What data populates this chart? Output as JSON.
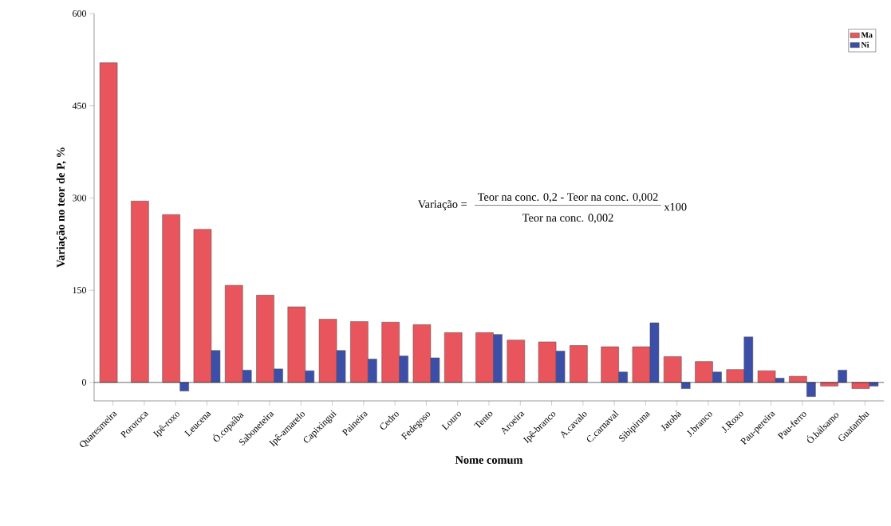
{
  "chart_data": {
    "type": "bar",
    "xlabel": "Nome comum",
    "ylabel": "Variação no teor de P, %",
    "categories": [
      "Quaresmeira",
      "Pororoca",
      "Ipê-roxo",
      "Leucena",
      "Ó.copaíba",
      "Saboneteira",
      "Ipê-amarelo",
      "Capixingui",
      "Paineira",
      "Cedro",
      "Fedegoso",
      "Louro",
      "Tento",
      "Aroeira",
      "Ipê-branco",
      "A.cavalo",
      "C.carnaval",
      "Sibipiruna",
      "Jatobá",
      "J.branco",
      "J.Roxo",
      "Pau-pereira",
      "Pau-ferro",
      "Ó.bálsamo",
      "Guatambu"
    ],
    "series": [
      {
        "name": "Ma",
        "color": "#e8555c",
        "values": [
          520,
          295,
          273,
          249,
          158,
          142,
          123,
          103,
          99,
          98,
          94,
          81,
          81,
          69,
          66,
          60,
          58,
          58,
          42,
          34,
          21,
          19,
          10,
          -6,
          -10
        ]
      },
      {
        "name": "Ni",
        "color": "#3c4fa8",
        "values": [
          null,
          null,
          -14,
          52,
          20,
          22,
          19,
          52,
          38,
          43,
          40,
          null,
          78,
          null,
          51,
          null,
          17,
          97,
          -10,
          17,
          74,
          7,
          -23,
          20,
          -6
        ]
      }
    ],
    "ylim": [
      -30,
      600
    ],
    "yticks": [
      0,
      150,
      300,
      450,
      600
    ],
    "ref_lines": [
      {
        "axis": "y",
        "value": 0
      }
    ],
    "legend": "top right",
    "grid": false,
    "annotations": [
      "Variação =",
      "Teor na conc. 0,2  -  Teor na conc. 0,002",
      "Teor na conc. 0,002",
      "x100"
    ]
  }
}
